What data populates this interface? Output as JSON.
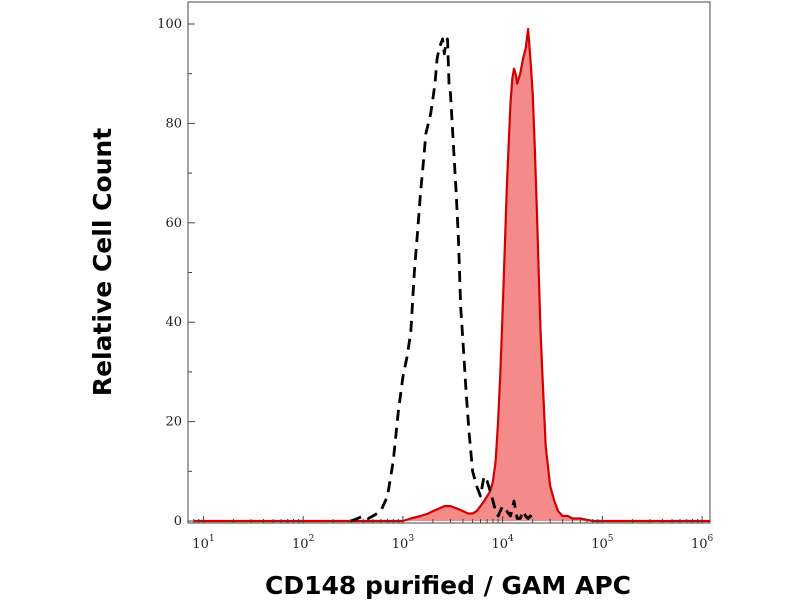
{
  "chart_data": {
    "type": "area",
    "xscale": "log",
    "xlim": [
      7,
      1200000
    ],
    "ylim": [
      0,
      100
    ],
    "xlabel": "CD148 purified / GAM APC",
    "ylabel": "Relative Cell Count",
    "grid": false,
    "legend": "none",
    "x_ticks": [
      {
        "base": "10",
        "exp": "1",
        "value": 10
      },
      {
        "base": "10",
        "exp": "2",
        "value": 100
      },
      {
        "base": "10",
        "exp": "3",
        "value": 1000
      },
      {
        "base": "10",
        "exp": "4",
        "value": 10000
      },
      {
        "base": "10",
        "exp": "5",
        "value": 100000
      },
      {
        "base": "10",
        "exp": "6",
        "value": 1000000
      }
    ],
    "y_ticks": [
      "0",
      "20",
      "40",
      "60",
      "80",
      "100"
    ],
    "y_tick_values": [
      0,
      20,
      40,
      60,
      80,
      100
    ],
    "series": [
      {
        "style": "dashed-outline",
        "color": "#000000",
        "x": [
          300,
          350,
          400,
          450,
          500,
          600,
          700,
          800,
          900,
          1000,
          1100,
          1200,
          1300,
          1400,
          1500,
          1600,
          1700,
          1800,
          1900,
          2000,
          2100,
          2200,
          2300,
          2400,
          2500,
          2600,
          2700,
          2800,
          2900,
          3000,
          3200,
          3400,
          3600,
          3800,
          4000,
          4300,
          4600,
          5000,
          5500,
          6000,
          6500,
          7000,
          7500,
          8000,
          8500,
          9000,
          10000,
          11000,
          12000,
          13000,
          14000,
          15000,
          16000,
          17000,
          18000,
          19000,
          20000,
          22000
        ],
        "y": [
          0,
          0.5,
          1,
          0.5,
          1,
          2,
          5,
          12,
          22,
          29,
          33,
          38,
          50,
          58,
          66,
          72,
          78,
          80,
          82,
          85,
          88,
          93,
          95,
          96,
          97,
          94,
          96,
          97,
          88,
          86,
          76,
          67,
          57,
          43,
          36,
          26,
          18,
          10,
          7,
          5,
          9,
          8,
          6,
          4,
          2,
          1,
          3,
          2,
          1,
          4,
          0.5,
          0.5,
          2,
          1,
          0.5,
          1,
          0.5,
          0
        ]
      },
      {
        "style": "filled",
        "color": "#d40000",
        "fill": "#f58a8a",
        "x": [
          8,
          100,
          200,
          300,
          400,
          500,
          700,
          1000,
          1200,
          1500,
          1800,
          2000,
          2300,
          2600,
          3000,
          3500,
          4000,
          4500,
          5000,
          5500,
          6000,
          6500,
          7000,
          7500,
          8000,
          8500,
          9000,
          9500,
          10000,
          10500,
          11000,
          11500,
          12000,
          12500,
          13000,
          13500,
          14000,
          15000,
          16000,
          17000,
          18000,
          19000,
          20000,
          21000,
          22000,
          23000,
          24000,
          25000,
          27000,
          30000,
          33000,
          36000,
          40000,
          45000,
          50000,
          60000,
          80000,
          100000,
          200000,
          500000,
          1000000,
          1200000
        ],
        "y": [
          0,
          0,
          0,
          0,
          0,
          0,
          0,
          0,
          0.5,
          1,
          1.5,
          2,
          2.5,
          3,
          3,
          2.5,
          2,
          1.5,
          1.5,
          2,
          3,
          4,
          5,
          6,
          8,
          12,
          20,
          30,
          42,
          55,
          67,
          76,
          84,
          89,
          91,
          90,
          88,
          90,
          93,
          95,
          99,
          93,
          86,
          75,
          63,
          50,
          38,
          30,
          15,
          7,
          4,
          2,
          1,
          1,
          0.5,
          0.5,
          0,
          0,
          0,
          0,
          0,
          0
        ]
      }
    ]
  }
}
